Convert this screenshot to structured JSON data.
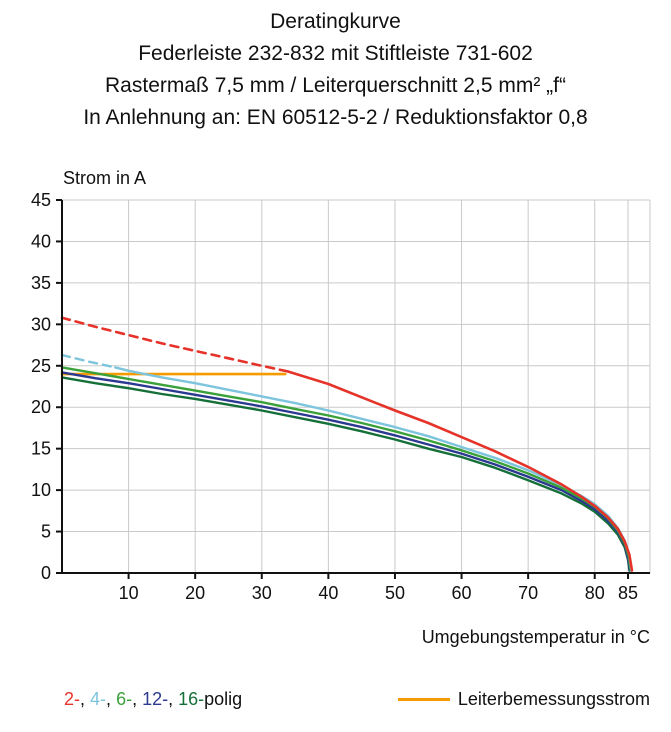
{
  "header": {
    "lines": [
      "Deratingkurve",
      "Federleiste 232-832 mit Stiftleiste 731-602",
      "Rastermaß 7,5 mm / Leiterquerschnitt 2,5 mm² „f“",
      "In Anlehnung an: EN 60512-5-2 / Reduktionsfaktor 0,8"
    ]
  },
  "axes": {
    "y_title": "Strom in A",
    "x_title": "Umgebungstemperatur in °C"
  },
  "legend": {
    "poles": [
      {
        "label": "2-",
        "color": "#e5332a"
      },
      {
        "label": "4-",
        "color": "#7dc4dd"
      },
      {
        "label": "6-",
        "color": "#3aa13a"
      },
      {
        "label": "12-",
        "color": "#2b3990"
      },
      {
        "label": "16-",
        "color": "#156f39"
      }
    ],
    "separator": ", ",
    "suffix": "polig",
    "rated_label": "Leiterbemessungsstrom",
    "rated_color": "#f59b00"
  },
  "chart_data": {
    "type": "line",
    "title": "Deratingkurve — Federleiste 232-832 mit Stiftleiste 731-602",
    "xlabel": "Umgebungstemperatur in °C",
    "ylabel": "Strom in A",
    "xlim": [
      0,
      88.3
    ],
    "ylim": [
      0,
      45
    ],
    "xticks": [
      10,
      20,
      30,
      40,
      50,
      60,
      70,
      80,
      85
    ],
    "yticks": [
      0,
      5,
      10,
      15,
      20,
      25,
      30,
      35,
      40,
      45
    ],
    "grid": true,
    "legend_position": "bottom",
    "series": [
      {
        "name": "Leiterbemessungsstrom",
        "color": "#f59b00",
        "width": 2.6,
        "segments": [
          {
            "dashed": false,
            "points": [
              [
                0,
                24
              ],
              [
                33.5,
                24
              ]
            ]
          }
        ]
      },
      {
        "name": "16-polig",
        "color": "#156f39",
        "width": 2.4,
        "segments": [
          {
            "dashed": false,
            "points": [
              [
                0,
                23.6
              ],
              [
                5,
                22.9
              ],
              [
                10,
                22.3
              ],
              [
                15,
                21.6
              ],
              [
                20,
                21.0
              ],
              [
                25,
                20.3
              ],
              [
                30,
                19.6
              ],
              [
                35,
                18.8
              ],
              [
                40,
                18.0
              ],
              [
                45,
                17.1
              ],
              [
                50,
                16.1
              ],
              [
                55,
                15.0
              ],
              [
                60,
                14.0
              ],
              [
                65,
                12.7
              ],
              [
                70,
                11.2
              ],
              [
                75,
                9.6
              ],
              [
                78,
                8.4
              ],
              [
                80,
                7.4
              ],
              [
                82,
                6.0
              ],
              [
                83.5,
                4.6
              ],
              [
                84.5,
                3.1
              ],
              [
                85,
                1.6
              ],
              [
                85.2,
                0.3
              ]
            ]
          }
        ]
      },
      {
        "name": "12-polig",
        "color": "#2b3990",
        "width": 2.4,
        "segments": [
          {
            "dashed": false,
            "points": [
              [
                0,
                24.2
              ],
              [
                5,
                23.5
              ],
              [
                10,
                22.9
              ],
              [
                15,
                22.2
              ],
              [
                20,
                21.5
              ],
              [
                25,
                20.8
              ],
              [
                30,
                20.1
              ],
              [
                35,
                19.3
              ],
              [
                40,
                18.5
              ],
              [
                45,
                17.6
              ],
              [
                50,
                16.6
              ],
              [
                55,
                15.5
              ],
              [
                60,
                14.4
              ],
              [
                65,
                13.1
              ],
              [
                70,
                11.6
              ],
              [
                75,
                10.0
              ],
              [
                78,
                8.7
              ],
              [
                80,
                7.7
              ],
              [
                82,
                6.3
              ],
              [
                83.5,
                4.9
              ],
              [
                84.5,
                3.4
              ],
              [
                85,
                1.8
              ],
              [
                85.3,
                0.3
              ]
            ]
          }
        ]
      },
      {
        "name": "6-polig",
        "color": "#3aa13a",
        "width": 2.4,
        "segments": [
          {
            "dashed": false,
            "points": [
              [
                0,
                24.8
              ],
              [
                5,
                24.1
              ],
              [
                10,
                23.4
              ],
              [
                15,
                22.7
              ],
              [
                20,
                22.0
              ],
              [
                25,
                21.3
              ],
              [
                30,
                20.6
              ],
              [
                35,
                19.8
              ],
              [
                40,
                19.0
              ],
              [
                45,
                18.1
              ],
              [
                50,
                17.1
              ],
              [
                55,
                16.0
              ],
              [
                60,
                14.8
              ],
              [
                65,
                13.5
              ],
              [
                70,
                12.0
              ],
              [
                75,
                10.3
              ],
              [
                78,
                9.0
              ],
              [
                80,
                8.0
              ],
              [
                82,
                6.6
              ],
              [
                83.5,
                5.1
              ],
              [
                84.5,
                3.6
              ],
              [
                85.1,
                2.0
              ],
              [
                85.4,
                0.3
              ]
            ]
          }
        ]
      },
      {
        "name": "4-polig",
        "color": "#7dc4dd",
        "width": 2.4,
        "segments": [
          {
            "dashed": true,
            "points": [
              [
                0,
                26.3
              ],
              [
                4,
                25.5
              ],
              [
                8,
                24.8
              ]
            ]
          },
          {
            "dashed": false,
            "points": [
              [
                8,
                24.8
              ],
              [
                10,
                24.4
              ],
              [
                15,
                23.6
              ],
              [
                20,
                22.9
              ],
              [
                25,
                22.1
              ],
              [
                30,
                21.3
              ],
              [
                35,
                20.5
              ],
              [
                40,
                19.6
              ],
              [
                45,
                18.6
              ],
              [
                50,
                17.6
              ],
              [
                55,
                16.5
              ],
              [
                60,
                15.2
              ],
              [
                65,
                13.9
              ],
              [
                70,
                12.4
              ],
              [
                75,
                10.6
              ],
              [
                78,
                9.3
              ],
              [
                80,
                8.3
              ],
              [
                82,
                6.9
              ],
              [
                83.5,
                5.4
              ],
              [
                84.5,
                3.9
              ],
              [
                85.2,
                2.2
              ],
              [
                85.5,
                0.3
              ]
            ]
          }
        ]
      },
      {
        "name": "2-polig",
        "color": "#e5332a",
        "width": 2.6,
        "segments": [
          {
            "dashed": true,
            "points": [
              [
                0,
                30.8
              ],
              [
                5,
                29.7
              ],
              [
                10,
                28.7
              ],
              [
                15,
                27.7
              ],
              [
                20,
                26.8
              ],
              [
                25,
                25.9
              ],
              [
                30,
                25.0
              ],
              [
                34,
                24.3
              ]
            ]
          },
          {
            "dashed": false,
            "points": [
              [
                34,
                24.3
              ],
              [
                40,
                22.8
              ],
              [
                45,
                21.2
              ],
              [
                50,
                19.6
              ],
              [
                55,
                18.1
              ],
              [
                60,
                16.4
              ],
              [
                65,
                14.7
              ],
              [
                70,
                12.8
              ],
              [
                75,
                10.7
              ],
              [
                78,
                9.2
              ],
              [
                80,
                8.1
              ],
              [
                82,
                6.7
              ],
              [
                83.5,
                5.3
              ],
              [
                84.5,
                3.8
              ],
              [
                85.2,
                2.2
              ],
              [
                85.6,
                0.3
              ]
            ]
          }
        ]
      }
    ]
  }
}
